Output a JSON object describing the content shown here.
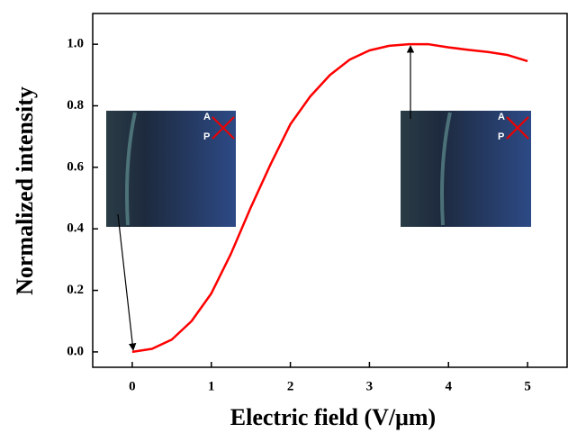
{
  "chart_data": {
    "type": "line",
    "xlabel": "Electric field (V/μm)",
    "ylabel": "Normalized intensity",
    "x": [
      0,
      0.25,
      0.5,
      0.75,
      1,
      1.25,
      1.5,
      1.75,
      2,
      2.25,
      2.5,
      2.75,
      3,
      3.25,
      3.5,
      3.75,
      4,
      4.25,
      4.5,
      4.75,
      5
    ],
    "series": [
      {
        "color": "#ff0000",
        "values": [
          0,
          0.01,
          0.04,
          0.1,
          0.19,
          0.32,
          0.47,
          0.61,
          0.74,
          0.83,
          0.9,
          0.95,
          0.98,
          0.995,
          1.0,
          1.0,
          0.99,
          0.982,
          0.975,
          0.965,
          0.945
        ]
      }
    ],
    "xlim": [
      -0.5,
      5.5
    ],
    "ylim": [
      -0.05,
      1.1
    ],
    "xticks": [
      0,
      1,
      2,
      3,
      4,
      5
    ],
    "yticks": [
      {
        "value": 0,
        "label": "0.0"
      },
      0.2,
      0.4,
      0.6,
      0.8,
      {
        "value": 1,
        "label": "1.0"
      }
    ],
    "inset_labels": [
      [
        "A",
        "P"
      ],
      [
        "A",
        "P"
      ]
    ]
  }
}
